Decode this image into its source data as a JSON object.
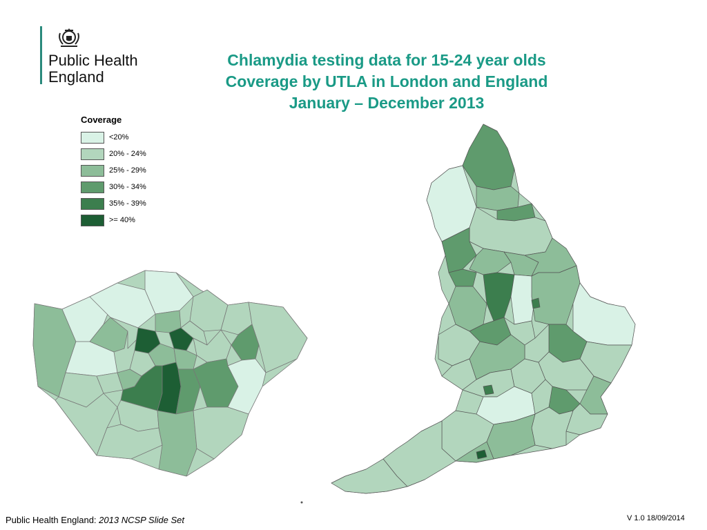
{
  "organisation": {
    "line1": "Public Health",
    "line2": "England"
  },
  "title": {
    "line1": "Chlamydia testing data for 15-24 year olds",
    "line2": "Coverage by UTLA in London and England",
    "line3": "January – December 2013"
  },
  "legend": {
    "title": "Coverage",
    "items": [
      {
        "label": "<20%",
        "color": "#d9f2e6"
      },
      {
        "label": "20% - 24%",
        "color": "#b2d6bd"
      },
      {
        "label": "25% - 29%",
        "color": "#8dbd99"
      },
      {
        "label": "30% - 34%",
        "color": "#5f9b6d"
      },
      {
        "label": "35% - 39%",
        "color": "#3c7e4e"
      },
      {
        "label": ">= 40%",
        "color": "#1d5e34"
      }
    ]
  },
  "maps": {
    "london_inset": "London",
    "england": "England"
  },
  "footer": {
    "org": "Public Health England:",
    "slideset": "2013 NCSP Slide Set",
    "version": "V 1.0  18/09/2014"
  }
}
